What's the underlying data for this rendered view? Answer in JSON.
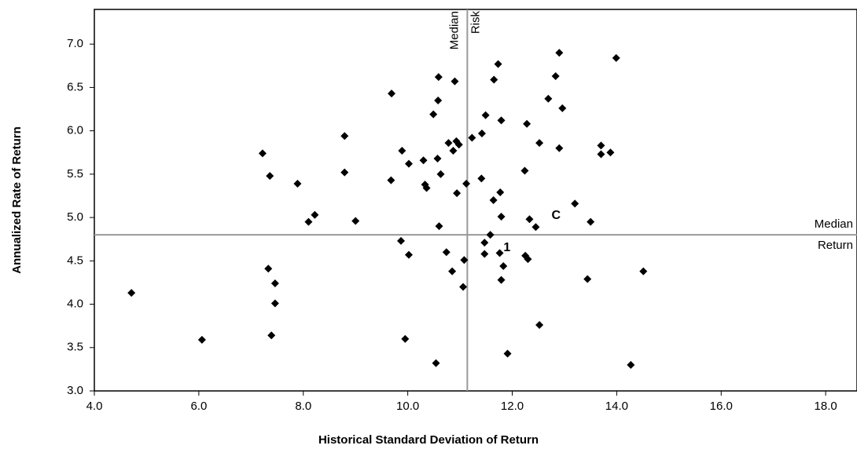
{
  "chart_data": {
    "type": "scatter",
    "x_label": "Historical Standard Deviation of Return",
    "y_label": "Annualized Rate of Return",
    "xlim": [
      4,
      18.6
    ],
    "ylim": [
      3,
      7.4
    ],
    "xticks": [
      {
        "value": 4,
        "label": "4.0"
      },
      {
        "value": 6,
        "label": "6.0"
      },
      {
        "value": 8,
        "label": "8.0"
      },
      {
        "value": 10,
        "label": "10.0"
      },
      {
        "value": 12,
        "label": "12.0"
      },
      {
        "value": 14,
        "label": "14.0"
      },
      {
        "value": 16,
        "label": "16.0"
      },
      {
        "value": 18,
        "label": "18.0"
      }
    ],
    "yticks": [
      {
        "value": 3,
        "label": "3.0"
      },
      {
        "value": 3.5,
        "label": "3.5"
      },
      {
        "value": 4,
        "label": "4.0"
      },
      {
        "value": 4.5,
        "label": "4.5"
      },
      {
        "value": 5,
        "label": "5.0"
      },
      {
        "value": 5.5,
        "label": "5.5"
      },
      {
        "value": 6,
        "label": "6.0"
      },
      {
        "value": 6.5,
        "label": "6.5"
      },
      {
        "value": 7,
        "label": "7.0"
      }
    ],
    "color": "#000000",
    "x": [
      4.71,
      6.06,
      7.22,
      7.36,
      7.33,
      7.46,
      7.46,
      7.39,
      7.89,
      8.22,
      8.1,
      8.79,
      8.79,
      9.0,
      9.69,
      9.68,
      9.87,
      9.89,
      10.02,
      10.02,
      9.95,
      10.3,
      10.33,
      10.36,
      10.49,
      10.58,
      10.59,
      10.57,
      10.63,
      10.6,
      10.54,
      10.78,
      10.74,
      10.85,
      10.87,
      10.9,
      10.93,
      10.94,
      10.98,
      11.08,
      11.06,
      11.12,
      11.23,
      11.42,
      11.41,
      11.49,
      11.47,
      11.47,
      11.58,
      11.64,
      11.65,
      11.73,
      11.79,
      11.77,
      11.79,
      11.76,
      11.79,
      11.83,
      11.91,
      12.28,
      12.24,
      12.33,
      12.25,
      12.3,
      12.45,
      12.52,
      12.52,
      12.69,
      12.83,
      12.9,
      12.9,
      12.96,
      13.2,
      13.44,
      13.5,
      13.7,
      13.7,
      13.88,
      13.99,
      14.27,
      14.51
    ],
    "values": [
      4.13,
      3.59,
      5.74,
      5.48,
      4.41,
      4.24,
      4.01,
      3.64,
      5.39,
      5.03,
      4.95,
      5.94,
      5.52,
      4.96,
      6.43,
      5.43,
      4.73,
      5.77,
      5.62,
      4.57,
      3.6,
      5.66,
      5.38,
      5.34,
      6.19,
      6.35,
      6.62,
      5.68,
      5.5,
      4.9,
      3.32,
      5.86,
      4.6,
      4.38,
      5.77,
      6.57,
      5.88,
      5.28,
      5.84,
      4.51,
      4.2,
      5.39,
      5.92,
      5.97,
      5.45,
      6.18,
      4.71,
      4.58,
      4.8,
      5.2,
      6.59,
      6.77,
      6.12,
      5.29,
      5.01,
      4.59,
      4.28,
      4.44,
      3.43,
      6.08,
      5.54,
      4.98,
      4.56,
      4.52,
      4.89,
      5.86,
      3.76,
      6.37,
      6.63,
      6.9,
      5.8,
      6.26,
      5.16,
      4.29,
      4.95,
      5.83,
      5.73,
      5.75,
      6.84,
      3.3,
      4.38
    ],
    "labeled_points": [
      {
        "label": "1",
        "x": 11.9,
        "y": 4.65,
        "color": "#1f1fd6"
      },
      {
        "label": "C",
        "x": 12.84,
        "y": 5.02,
        "color": "#e02020"
      }
    ],
    "median_risk": {
      "lines": [
        "Median",
        "Risk"
      ],
      "value": 11.14
    },
    "median_return": {
      "lines": [
        "Median",
        "Return"
      ],
      "value": 4.8
    }
  }
}
